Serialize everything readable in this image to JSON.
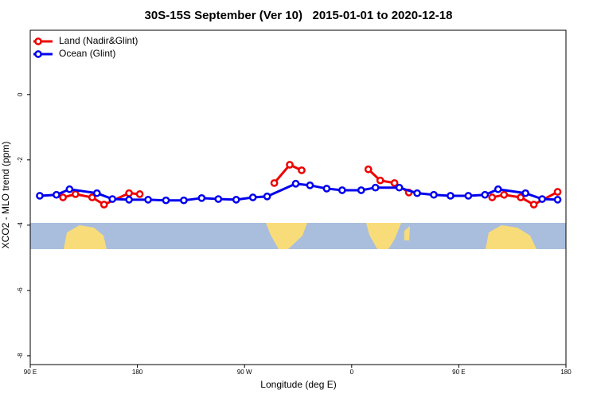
{
  "chart_data": {
    "type": "line",
    "title": "30S-15S September (Ver 10)   2015-01-01 to 2020-12-18",
    "xlabel": "Longitude (deg E)",
    "ylabel": "XCO2 - MLO trend (ppm)",
    "xlim": [
      90,
      540
    ],
    "ylim": [
      -8.27,
      1.97
    ],
    "xticks": [
      {
        "value": 90,
        "label": "90 E"
      },
      {
        "value": 180,
        "label": "180"
      },
      {
        "value": 270,
        "label": "90 W"
      },
      {
        "value": 360,
        "label": "0"
      },
      {
        "value": 450,
        "label": "90 E"
      },
      {
        "value": 540,
        "label": "180"
      }
    ],
    "yticks": [
      0,
      -2,
      -4,
      -6,
      -8
    ],
    "legend": "top-left",
    "series": [
      {
        "name": "Land (Nadir&Glint)",
        "color": "#ee0000",
        "x": [
          117.5,
          128,
          142,
          152,
          173,
          182,
          null,
          295,
          308,
          318,
          null,
          374,
          384,
          396,
          408,
          null,
          478,
          488,
          502,
          513,
          533
        ],
        "values": [
          -3.15,
          -3.05,
          -3.15,
          -3.37,
          -3.02,
          -3.05,
          null,
          -2.71,
          -2.15,
          -2.32,
          null,
          -2.29,
          -2.63,
          -2.71,
          -3.0,
          null,
          -3.15,
          -3.07,
          -3.15,
          -3.37,
          -2.98
        ]
      },
      {
        "name": "Ocean (Glint)",
        "color": "#0000ee",
        "x": [
          98,
          112,
          123,
          146,
          159,
          173,
          189,
          204,
          219,
          234,
          248,
          263,
          277,
          289,
          313,
          325,
          339,
          352,
          368,
          380,
          400,
          415,
          429,
          443,
          458,
          472,
          483,
          506,
          520,
          533
        ],
        "values": [
          -3.1,
          -3.07,
          -2.9,
          -3.02,
          -3.2,
          -3.22,
          -3.22,
          -3.24,
          -3.24,
          -3.17,
          -3.2,
          -3.22,
          -3.15,
          -3.12,
          -2.73,
          -2.78,
          -2.88,
          -2.93,
          -2.93,
          -2.85,
          -2.85,
          -3.02,
          -3.07,
          -3.1,
          -3.1,
          -3.07,
          -2.9,
          -3.02,
          -3.2,
          -3.22
        ]
      }
    ]
  }
}
